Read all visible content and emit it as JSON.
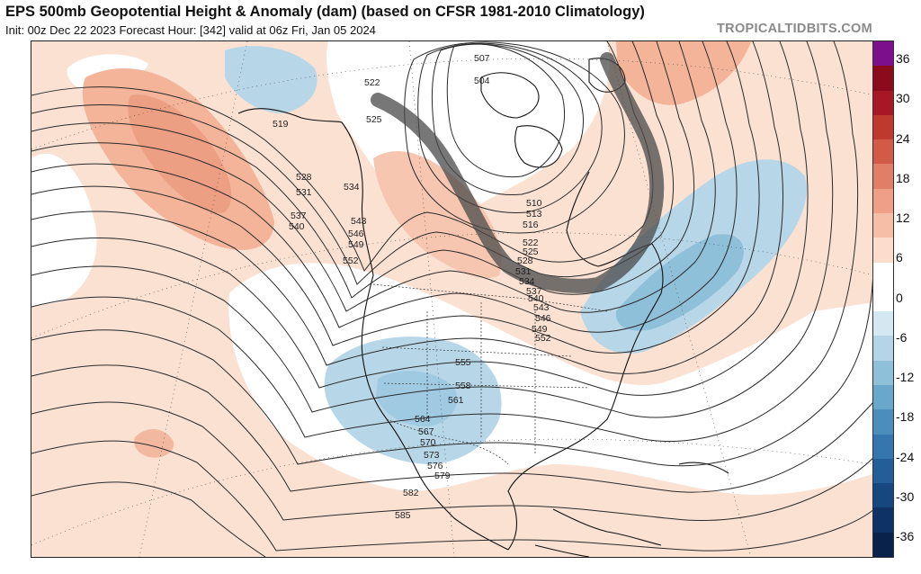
{
  "header": {
    "title": "EPS 500mb Geopotential Height & Anomaly (dam) (based on CFSR 1981-2010 Climatology)",
    "subtitle": "Init: 00z Dec 22 2023   Forecast Hour: [342]   valid at 06z Fri, Jan 05 2024",
    "credit": "TROPICALTIDBITS.COM"
  },
  "colorbar": {
    "ticks": [
      "36",
      "30",
      "24",
      "18",
      "12",
      "6",
      "0",
      "-6",
      "-12",
      "-18",
      "-24",
      "-30",
      "-36"
    ],
    "colors": [
      "#7b0f8c",
      "#8b0a1c",
      "#a81726",
      "#c0392f",
      "#d45a48",
      "#e27e68",
      "#ee9f86",
      "#f6bea7",
      "#fbdccd",
      "#ffffff",
      "#ffffff",
      "#d4e8f1",
      "#b3d5e7",
      "#8fc0da",
      "#6aa7cc",
      "#4b8ebe",
      "#3476ad",
      "#235e98",
      "#17477f",
      "#0e3266",
      "#08224c"
    ]
  },
  "contour_labels": [
    "507",
    "504",
    "522",
    "519",
    "525",
    "528",
    "531",
    "534",
    "537",
    "540",
    "543",
    "546",
    "549",
    "552",
    "510",
    "513",
    "516",
    "522",
    "525",
    "528",
    "531",
    "534",
    "537",
    "540",
    "543",
    "546",
    "549",
    "552",
    "555",
    "558",
    "561",
    "564",
    "567",
    "570",
    "573",
    "576",
    "579",
    "582",
    "585"
  ]
}
